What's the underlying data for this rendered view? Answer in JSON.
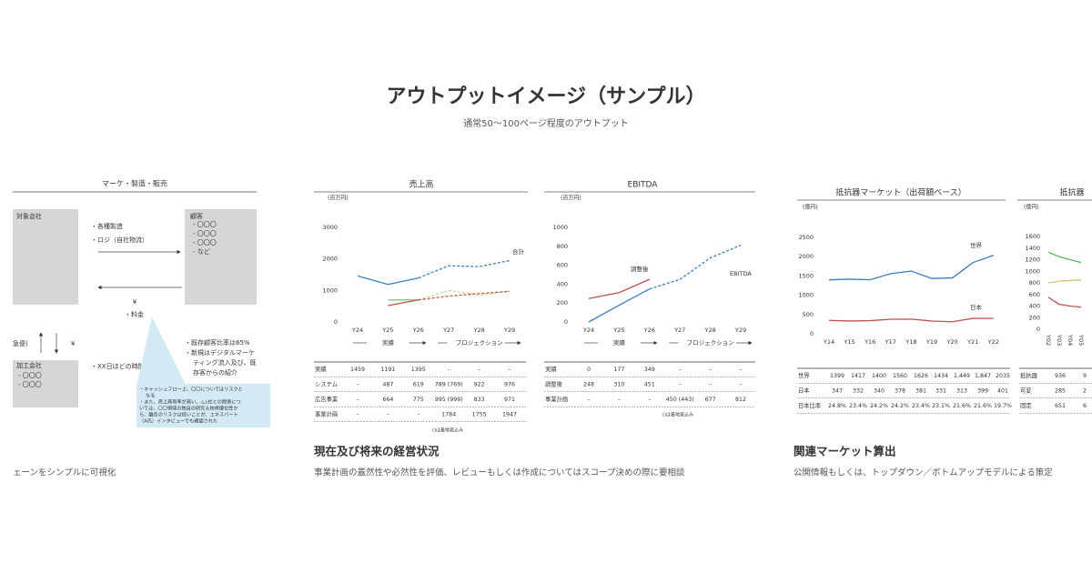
{
  "header": {
    "title": "アウトプットイメージ（サンプル）",
    "subtitle": "通常50〜100ページ程度のアウトプット"
  },
  "cards": [
    {
      "caption": "ェーンをシンプルに可視化",
      "diagram": {
        "title": "マーケ・製造・販売",
        "company": "対象会社",
        "flows": [
          "・各種製造",
          "・ロジ（自社物流）"
        ],
        "customer": {
          "label": "顧客",
          "items": [
            "- 〇〇〇",
            "- 〇〇〇",
            "- 〇〇〇",
            "- など"
          ]
        },
        "payment": {
          "symbol": "¥",
          "label": "・料金"
        },
        "side": {
          "label": "急便)",
          "symbol": "¥"
        },
        "processor": {
          "label": "加工会社",
          "items": [
            "- 〇〇〇",
            "- 〇〇〇"
          ]
        },
        "time": "・XX日ほどの時間",
        "notes": [
          "・既存顧客比率は65%",
          "・新規はデジタルマーケ",
          "ティング流入及び、既",
          "存客からの紹介"
        ],
        "callout": [
          "・キャッシュフロー上、〇〇についてはリスクと",
          "なる",
          "・また、売上高有率が高い、△△社との関係につ",
          "いては、〇〇領域の独自の研究＆技術優位性か",
          "ら、離反のリスクは低いことが、エキスパート",
          "（A氏）インタビューでも確認された"
        ]
      }
    },
    {
      "title": "現在及び将来の経営状況",
      "caption": "事業計画の蓋然性や必然性を評価、レビューもしくは作成についてはスコープ決めの際に要相談",
      "charts": [
        {
          "type": "line",
          "title": "売上高",
          "unit": "(百万円)",
          "categories": [
            "Y24",
            "Y25",
            "Y26",
            "Y27",
            "Y28",
            "Y29"
          ],
          "ylim": [
            0,
            3000
          ],
          "yticks": [
            0,
            1000,
            2000,
            3000
          ],
          "series": [
            {
              "color": "#3a7fc1",
              "values": [
                1459,
                1191,
                1395,
                null,
                null,
                null
              ]
            },
            {
              "name": "合計",
              "color": "#3a7fc1",
              "dashed": true,
              "values": [
                null,
                null,
                1395,
                1784,
                1755,
                1947
              ]
            },
            {
              "color": "#7cc46a",
              "values": [
                null,
                700,
                700,
                null,
                null,
                null
              ]
            },
            {
              "color": "#c9d87a",
              "dashed": true,
              "values": [
                null,
                null,
                700,
                1000,
                850,
                976
              ]
            },
            {
              "color": "#c0504d",
              "values": [
                null,
                520,
                700,
                null,
                null,
                null
              ]
            },
            {
              "color": "#c0504d",
              "dashed": true,
              "values": [
                null,
                null,
                700,
                820,
                900,
                971
              ]
            }
          ],
          "phases": [
            "実績",
            "プロジェクション"
          ],
          "table": [
            {
              "label": "実績",
              "cells": [
                1459,
                1191,
                1395,
                "–",
                "–",
                "–"
              ]
            },
            {
              "label": "システム",
              "cells": [
                "–",
                487,
                619,
                "789 (769)",
                922,
                976
              ]
            },
            {
              "label": "広告事業",
              "cells": [
                "–",
                664,
                775,
                "995 (999)",
                833,
                971
              ]
            },
            {
              "label": "事業計画",
              "cells": [
                "–",
                "–",
                "–",
                1784,
                1755,
                1947
              ]
            }
          ],
          "footnote": "()は着地見込み"
        },
        {
          "type": "line",
          "title": "EBITDA",
          "unit": "(百万円)",
          "categories": [
            "Y24",
            "Y25",
            "Y26",
            "Y27",
            "Y28",
            "Y29"
          ],
          "ylim": [
            0,
            1000
          ],
          "yticks": [
            0,
            200,
            400,
            600,
            800,
            1000
          ],
          "series": [
            {
              "color": "#3a7fc1",
              "values": [
                0,
                177,
                349,
                null,
                null,
                null
              ]
            },
            {
              "name": "EBITDA",
              "color": "#3a7fc1",
              "dashed": true,
              "values": [
                null,
                null,
                349,
                450,
                677,
                812
              ]
            },
            {
              "name": "調整後",
              "color": "#c0504d",
              "values": [
                248,
                310,
                451,
                null,
                null,
                null
              ]
            }
          ],
          "phases": [
            "実績",
            "プロジェクション"
          ],
          "table": [
            {
              "label": "実績",
              "cells": [
                0,
                177,
                349,
                "–",
                "–",
                "–"
              ]
            },
            {
              "label": "調整後",
              "cells": [
                248,
                310,
                451,
                "–",
                "–",
                "–"
              ]
            },
            {
              "label": "事業計画",
              "cells": [
                "–",
                "–",
                "–",
                "450 (443)",
                677,
                812
              ]
            }
          ],
          "footnote": "()は着地見込み"
        }
      ]
    },
    {
      "title": "関連マーケット算出",
      "caption": "公開情報もしくは、トップダウン／ボトムアップモデルによる策定",
      "charts": [
        {
          "type": "line",
          "title": "抵抗器マーケット（出荷額ベース）",
          "unit": "(億円)",
          "categories": [
            "Y14",
            "Y15",
            "Y16",
            "Y17",
            "Y18",
            "Y19",
            "Y20",
            "Y21",
            "Y22"
          ],
          "ylim": [
            0,
            2500
          ],
          "yticks": [
            0,
            500,
            1000,
            1500,
            2000,
            2500
          ],
          "series": [
            {
              "name": "世界",
              "color": "#3a7fc1",
              "values": [
                1399,
                1417,
                1400,
                1560,
                1626,
                1434,
                1449,
                1847,
                2035
              ]
            },
            {
              "name": "日本",
              "color": "#c0504d",
              "values": [
                347,
                332,
                340,
                378,
                381,
                331,
                313,
                399,
                401
              ]
            }
          ],
          "table": [
            {
              "label": "世界",
              "cells": [
                1399,
                1417,
                1400,
                1560,
                1626,
                1434,
                "1,449",
                "1,847",
                2035
              ]
            },
            {
              "label": "日本",
              "cells": [
                347,
                332,
                340,
                378,
                381,
                331,
                313,
                399,
                401
              ]
            },
            {
              "label": "日本比率",
              "cells": [
                "24.8%",
                "23.4%",
                "24.2%",
                "24.2%",
                "23.4%",
                "23.1%",
                "21.6%",
                "21.6%",
                "19.7%"
              ]
            }
          ]
        },
        {
          "type": "line",
          "title": "抵抗器",
          "unit": "(億円)",
          "categories": [
            "Y02",
            "Y03",
            "Y04",
            "Y05"
          ],
          "ylim": [
            0,
            1600
          ],
          "yticks": [
            0,
            200,
            400,
            600,
            800,
            1000,
            1200,
            1400,
            1600
          ],
          "series": [
            {
              "color": "#5cb85c",
              "values": [
                1330,
                1250,
                1200,
                1150
              ]
            },
            {
              "color": "#c9c96a",
              "values": [
                800,
                830,
                840,
                850
              ]
            },
            {
              "color": "#c0504d",
              "values": [
                550,
                430,
                400,
                380
              ]
            }
          ],
          "table": [
            {
              "label": "抵抗器",
              "cells": [
                936,
                9
              ]
            },
            {
              "label": "可変",
              "cells": [
                285,
                2
              ]
            },
            {
              "label": "固定",
              "cells": [
                651,
                6
              ]
            }
          ]
        }
      ]
    }
  ]
}
